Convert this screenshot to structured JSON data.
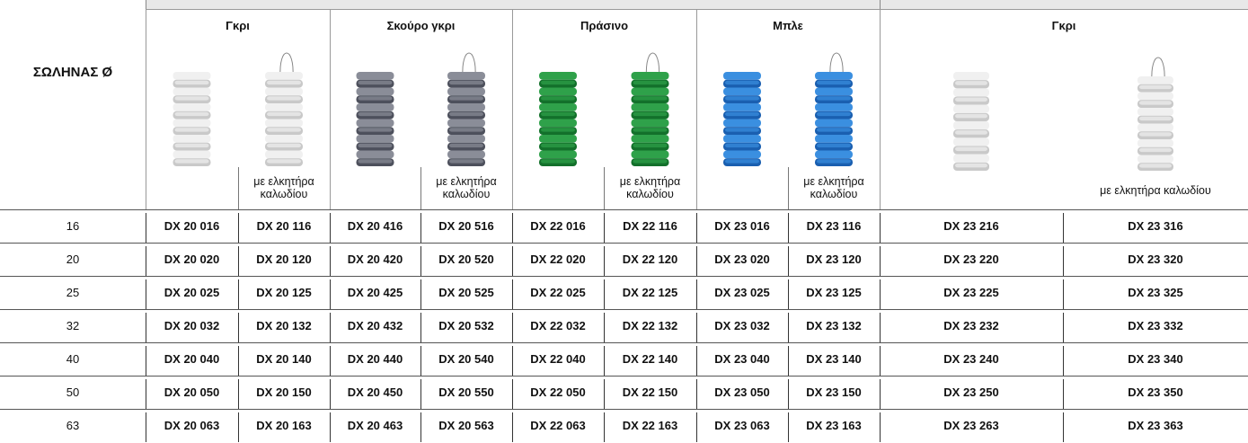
{
  "table": {
    "corner": "ΣΩΛΗΝΑΣ Ø",
    "groups": [
      {
        "title": "Γκρι",
        "caption": "με ελκητήρα καλωδίου"
      },
      {
        "title": "Σκούρο γκρι",
        "caption": "με ελκητήρα καλωδίου"
      },
      {
        "title": "Πράσινο",
        "caption": "με ελκητήρα καλωδίου"
      },
      {
        "title": "Μπλε",
        "caption": "με ελκητήρα καλωδίου"
      },
      {
        "title": "Γκρι",
        "caption": "με ελκητήρα καλωδίου"
      }
    ],
    "rows": [
      [
        "16",
        "DX 20 016",
        "DX 20 116",
        "DX 20 416",
        "DX 20 516",
        "DX 22 016",
        "DX 22 116",
        "DX 23 016",
        "DX 23 116",
        "DX 23 216",
        "DX 23 316"
      ],
      [
        "20",
        "DX 20 020",
        "DX 20 120",
        "DX 20 420",
        "DX 20 520",
        "DX 22 020",
        "DX 22 120",
        "DX 23 020",
        "DX 23 120",
        "DX 23 220",
        "DX 23 320"
      ],
      [
        "25",
        "DX 20 025",
        "DX 20 125",
        "DX 20 425",
        "DX 20 525",
        "DX 22 025",
        "DX 22 125",
        "DX 23 025",
        "DX 23 125",
        "DX 23 225",
        "DX 23 325"
      ],
      [
        "32",
        "DX 20 032",
        "DX 20 132",
        "DX 20 432",
        "DX 20 532",
        "DX 22 032",
        "DX 22 132",
        "DX 23 032",
        "DX 23 132",
        "DX 23 232",
        "DX 23 332"
      ],
      [
        "40",
        "DX 20 040",
        "DX 20 140",
        "DX 20 440",
        "DX 20 540",
        "DX 22 040",
        "DX 22 140",
        "DX 23 040",
        "DX 23 140",
        "DX 23 240",
        "DX 23 340"
      ],
      [
        "50",
        "DX 20 050",
        "DX 20 150",
        "DX 20 450",
        "DX 20 550",
        "DX 22 050",
        "DX 22 150",
        "DX 23 050",
        "DX 23 150",
        "DX 23 250",
        "DX 23 350"
      ],
      [
        "63",
        "DX 20 063",
        "DX 20 163",
        "DX 20 463",
        "DX 20 563",
        "DX 22 063",
        "DX 22 163",
        "DX 23 063",
        "DX 23 163",
        "DX 23 263",
        "DX 23 363"
      ]
    ]
  }
}
